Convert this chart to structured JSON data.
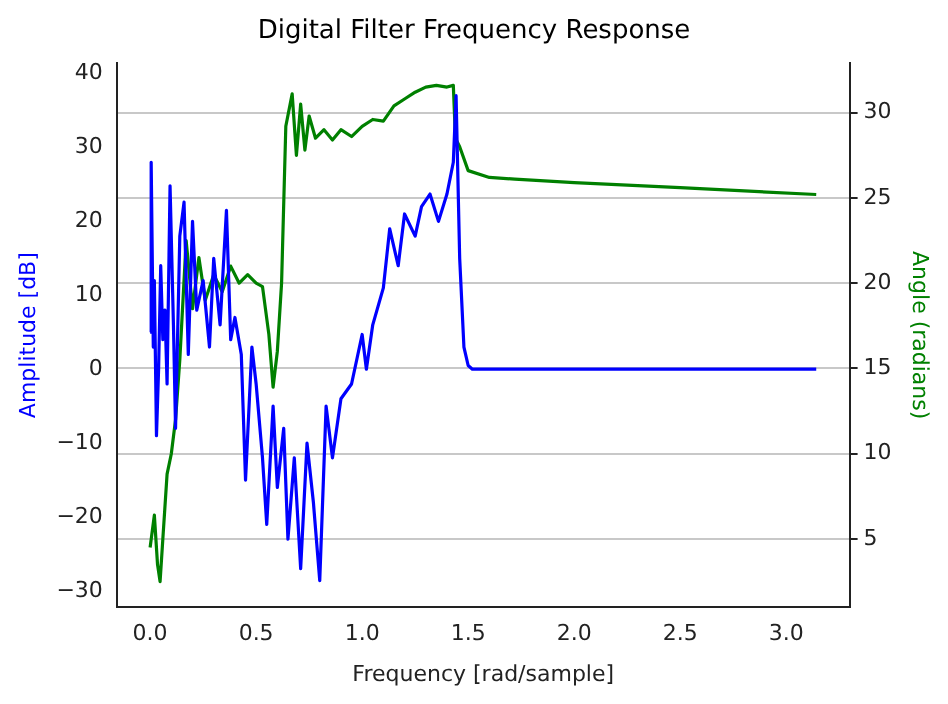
{
  "chart_data": {
    "type": "line",
    "title": "Digital Filter Frequency Response",
    "xlabel": "Frequency [rad/sample]",
    "ylabel": "Amplitude [dB]",
    "y2label": "Angle (radians)",
    "xlim": [
      -0.157,
      3.299
    ],
    "xticks": [
      {
        "value": 0,
        "label": "0.0"
      },
      {
        "value": 0.5,
        "label": "0.5"
      },
      {
        "value": 1,
        "label": "1.0"
      },
      {
        "value": 1.5,
        "label": "1.5"
      },
      {
        "value": 2,
        "label": "2.0"
      },
      {
        "value": 2.5,
        "label": "2.5"
      },
      {
        "value": 3,
        "label": "3.0"
      }
    ],
    "ylim": [
      -32.2,
      41.4
    ],
    "yticks": [
      {
        "value": -30,
        "label": "−30"
      },
      {
        "value": -20,
        "label": "−20"
      },
      {
        "value": -10,
        "label": "−10"
      },
      0,
      10,
      20,
      30,
      40
    ],
    "y2lim": [
      1.0,
      32.9
    ],
    "y2ticks": [
      5,
      10,
      15,
      20,
      25,
      30
    ],
    "grid": "y2",
    "line_style": "solid",
    "series": [
      {
        "color": "#0000ff",
        "x": [
          0,
          0.005,
          0.015,
          0.02,
          0.03,
          0.04,
          0.05,
          0.06,
          0.07,
          0.08,
          0.094,
          0.11,
          0.12,
          0.14,
          0.16,
          0.18,
          0.2,
          0.22,
          0.25,
          0.28,
          0.3,
          0.33,
          0.36,
          0.38,
          0.4,
          0.43,
          0.45,
          0.48,
          0.5,
          0.53,
          0.55,
          0.58,
          0.6,
          0.63,
          0.65,
          0.68,
          0.71,
          0.74,
          0.77,
          0.8,
          0.83,
          0.86,
          0.9,
          0.95,
          1.0,
          1.02,
          1.05,
          1.1,
          1.13,
          1.17,
          1.2,
          1.25,
          1.28,
          1.32,
          1.36,
          1.4,
          1.43,
          1.443,
          1.46,
          1.48,
          1.5,
          1.52,
          1.6,
          2.0,
          2.5,
          3.1416
        ],
        "values": [
          5,
          28,
          3,
          12,
          -9,
          0,
          14,
          4,
          8,
          -2,
          24.8,
          6,
          -8,
          18,
          22.6,
          2,
          20,
          8,
          12,
          3,
          15,
          6,
          21.5,
          4,
          7,
          2,
          -15,
          3,
          -2,
          -12,
          -21,
          -5,
          -16,
          -8,
          -23,
          -12,
          -27,
          -10,
          -18,
          -28.6,
          -5,
          -12,
          -4,
          -2,
          4.7,
          0,
          6,
          11,
          19,
          14,
          21,
          18,
          22,
          23.7,
          20,
          23.7,
          28,
          37,
          15,
          3,
          0.5,
          0,
          0,
          0,
          0,
          0
        ]
      },
      {
        "color": "#008000",
        "axis": "y2",
        "x": [
          0,
          0.02,
          0.035,
          0.047,
          0.06,
          0.08,
          0.1,
          0.12,
          0.14,
          0.17,
          0.2,
          0.23,
          0.26,
          0.3,
          0.34,
          0.38,
          0.42,
          0.46,
          0.5,
          0.53,
          0.56,
          0.58,
          0.6,
          0.62,
          0.64,
          0.67,
          0.69,
          0.71,
          0.73,
          0.75,
          0.78,
          0.82,
          0.86,
          0.9,
          0.95,
          1.0,
          1.05,
          1.1,
          1.15,
          1.2,
          1.25,
          1.3,
          1.35,
          1.4,
          1.43,
          1.44,
          1.46,
          1.5,
          1.6,
          1.72,
          2.0,
          2.5,
          3.1416
        ],
        "values": [
          4.5,
          6.4,
          3.5,
          2.5,
          5,
          8.8,
          10,
          12,
          15.5,
          22.5,
          18.5,
          21.5,
          19,
          20.5,
          19.5,
          21,
          20,
          20.5,
          20,
          19.8,
          17,
          13.9,
          16,
          20,
          29.2,
          31.1,
          27.5,
          30.5,
          27.8,
          29.8,
          28.5,
          29,
          28.4,
          29,
          28.6,
          29.2,
          29.6,
          29.5,
          30.4,
          30.8,
          31.2,
          31.5,
          31.6,
          31.5,
          31.6,
          28.5,
          28,
          26.6,
          26.2,
          26.1,
          25.9,
          25.6,
          25.2
        ]
      }
    ]
  }
}
